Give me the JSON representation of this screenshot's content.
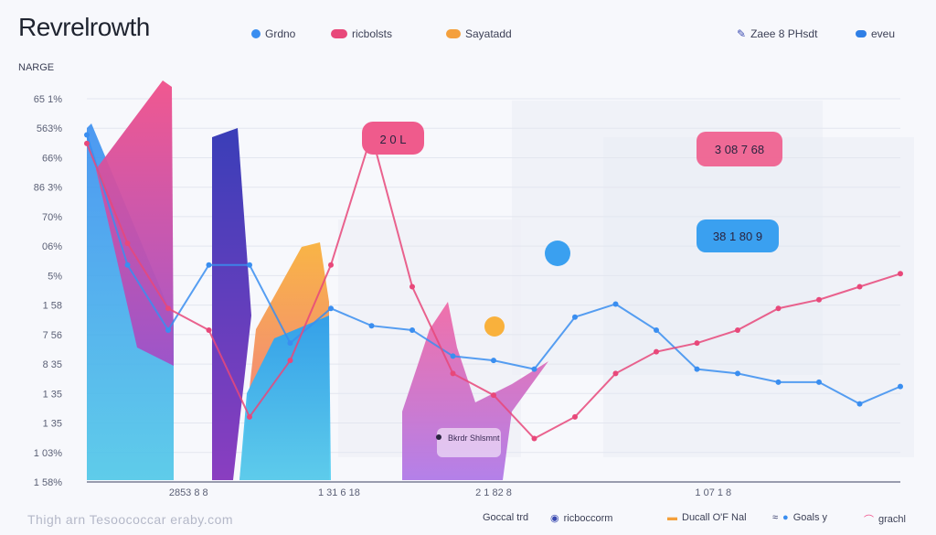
{
  "header": {
    "title": "Revrelrowth",
    "legend": [
      {
        "label": "Grdno",
        "color": "#3a8ef0"
      },
      {
        "label": "ricbolsts",
        "color": "#e8487a"
      },
      {
        "label": "Sayatadd",
        "color": "#f4a03c"
      },
      {
        "label": "Zaee 8 PHsdt",
        "color": "#3a4ab0"
      },
      {
        "label": "eveu",
        "color": "#2f7fe6"
      }
    ]
  },
  "footer": {
    "left_text": "Thigh arn Tesoococcar eraby.com",
    "items": [
      "Goccal trd",
      "ricboccorm",
      "Ducall O'F Nal",
      "Goals y",
      "grachl"
    ]
  },
  "chart_data": {
    "type": "area",
    "title": "Revrelrowth",
    "ylabel": "NARGE",
    "y_ticks": [
      "65 1%",
      "563%",
      "66%",
      "86 3%",
      "70%",
      "06%",
      "5%",
      "1 58",
      "7 56",
      "8 35",
      "1 35",
      "1 35",
      "1 03%",
      "1 58%"
    ],
    "x_ticks": [
      {
        "label": "2853 8 8",
        "x": 0.125
      },
      {
        "label": "1 31 6 18",
        "x": 0.31
      },
      {
        "label": "2 1 82 8",
        "x": 0.5
      },
      {
        "label": "1 07 1 8",
        "x": 0.77
      }
    ],
    "callouts": [
      "2 0 L",
      "3 08 7 68",
      "38 1 80 9"
    ],
    "annotation": "Bkrdr Shlsmnt",
    "series": [
      {
        "name": "Grdno",
        "color": "#3a8ef0",
        "values": [
          8,
          5,
          3.5,
          5,
          5,
          3.2,
          4,
          3.6,
          3.5,
          2.9,
          2.8,
          2.6,
          3.8,
          4.1,
          3.5,
          2.6,
          2.5,
          2.3,
          2.3,
          1.8,
          2.2
        ]
      },
      {
        "name": "ricbolsts",
        "color": "#e8487a",
        "values": [
          7.8,
          5.5,
          4,
          3.5,
          1.5,
          2.8,
          5,
          8,
          4.5,
          2.5,
          2,
          1,
          1.5,
          2.5,
          3,
          3.2,
          3.5,
          4,
          4.2,
          4.5,
          4.8
        ]
      }
    ]
  }
}
